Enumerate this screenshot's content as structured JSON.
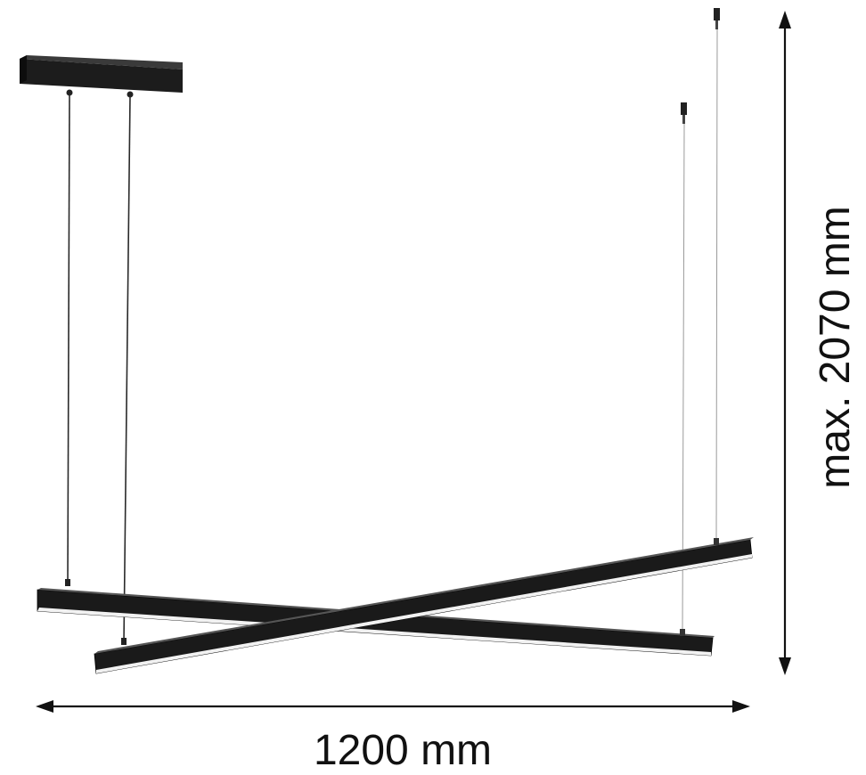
{
  "dimensions": {
    "width_label": "1200 mm",
    "height_label": "max. 2070 mm"
  },
  "colors": {
    "fixture": "#1a1a1a",
    "fixture_edge": "#000000",
    "diffuser": "#f2f2f2",
    "cable_dark": "#2a2a2a",
    "cable_light": "#9a9a9a",
    "dimension_line": "#111111"
  }
}
